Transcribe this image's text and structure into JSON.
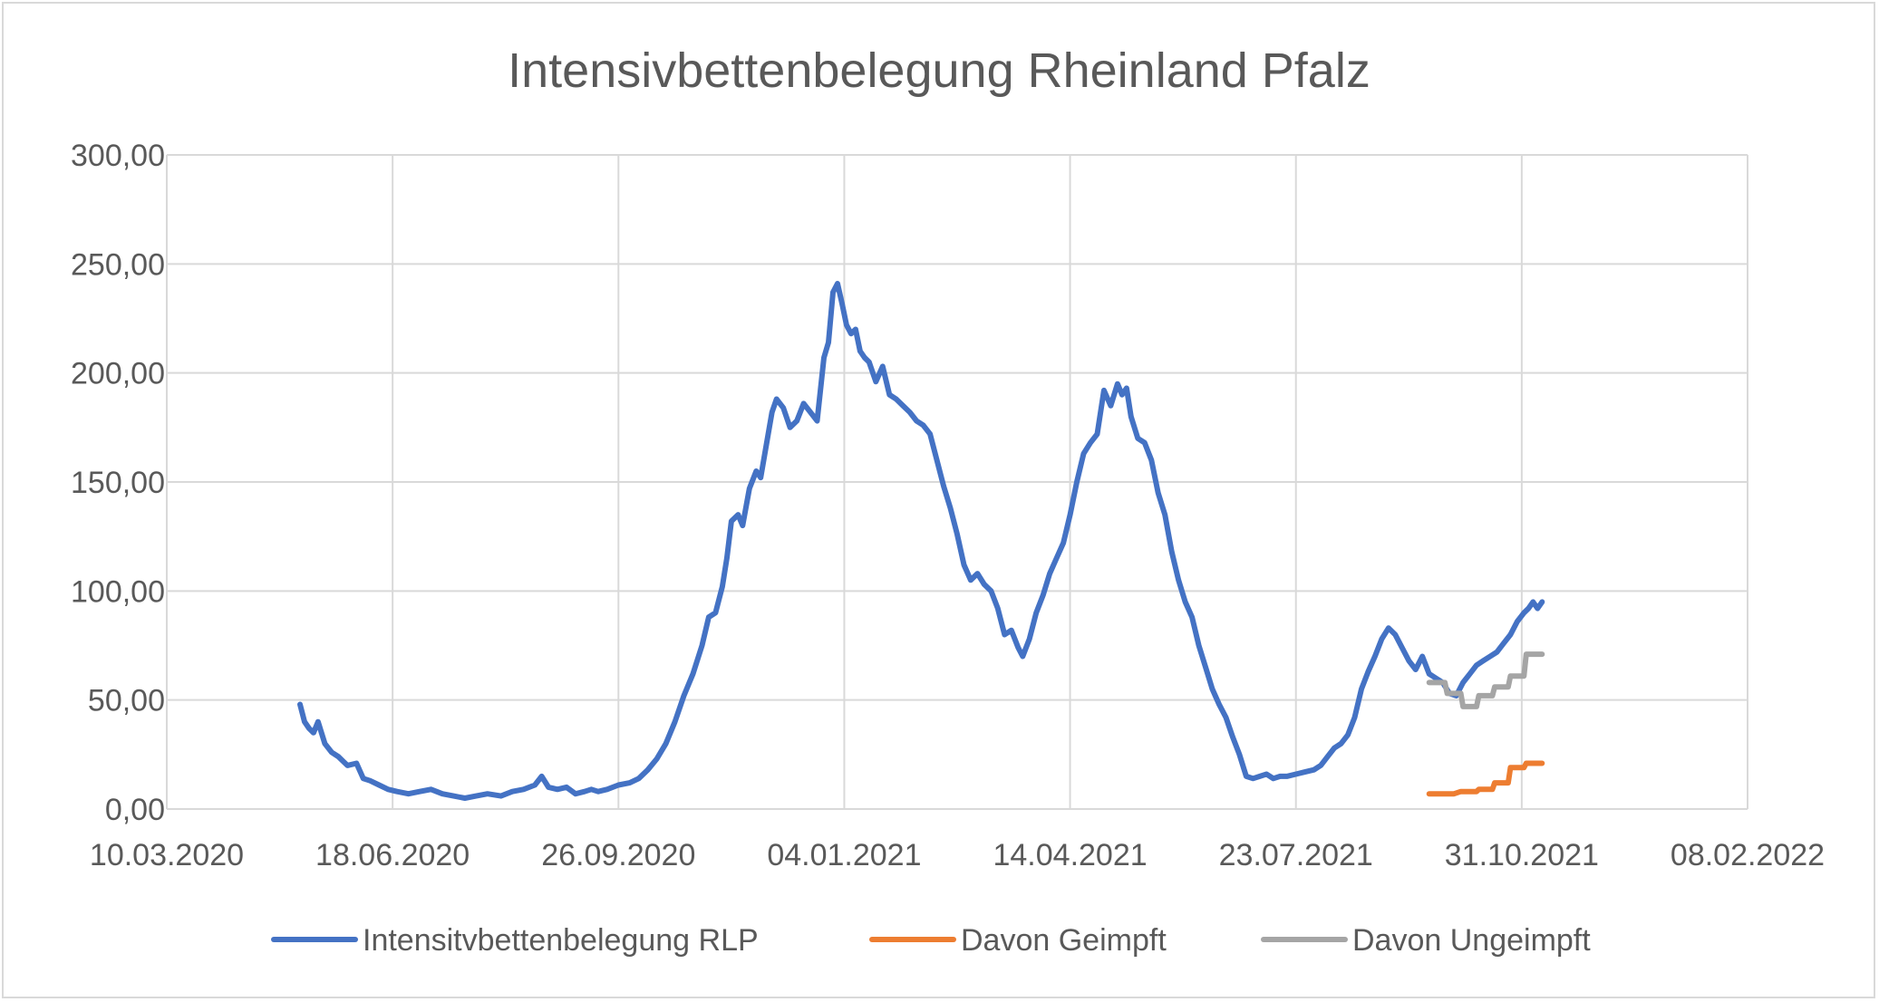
{
  "chart_data": {
    "type": "line",
    "title": "Intensivbettenbelegung Rheinland Pfalz",
    "xlabel": "",
    "ylabel": "",
    "x_axis": {
      "type": "date",
      "range": [
        "2020-03-10",
        "2022-02-08"
      ],
      "ticks": [
        "2020-03-10",
        "2020-06-18",
        "2020-09-26",
        "2021-01-04",
        "2021-04-14",
        "2021-07-23",
        "2021-10-31",
        "2022-02-08"
      ],
      "tick_labels": [
        "10.03.2020",
        "18.06.2020",
        "26.09.2020",
        "04.01.2021",
        "14.04.2021",
        "23.07.2021",
        "31.10.2021",
        "08.02.2022"
      ]
    },
    "y_axis": {
      "range": [
        0,
        300
      ],
      "ticks": [
        0,
        50,
        100,
        150,
        200,
        250,
        300
      ],
      "tick_labels": [
        "0,00",
        "50,00",
        "100,00",
        "150,00",
        "200,00",
        "250,00",
        "300,00"
      ]
    },
    "grid": true,
    "legend_position": "bottom",
    "series": [
      {
        "name": "Intensitvbettenbelegung RLP",
        "color": "#4472c4",
        "points": [
          [
            "2020-05-08",
            48
          ],
          [
            "2020-05-10",
            40
          ],
          [
            "2020-05-12",
            37
          ],
          [
            "2020-05-14",
            35
          ],
          [
            "2020-05-16",
            40
          ],
          [
            "2020-05-19",
            30
          ],
          [
            "2020-05-22",
            26
          ],
          [
            "2020-05-25",
            24
          ],
          [
            "2020-05-29",
            20
          ],
          [
            "2020-06-02",
            21
          ],
          [
            "2020-06-05",
            14
          ],
          [
            "2020-06-08",
            13
          ],
          [
            "2020-06-12",
            11
          ],
          [
            "2020-06-16",
            9
          ],
          [
            "2020-06-20",
            8
          ],
          [
            "2020-06-25",
            7
          ],
          [
            "2020-06-30",
            8
          ],
          [
            "2020-07-05",
            9
          ],
          [
            "2020-07-10",
            7
          ],
          [
            "2020-07-15",
            6
          ],
          [
            "2020-07-20",
            5
          ],
          [
            "2020-07-25",
            6
          ],
          [
            "2020-07-30",
            7
          ],
          [
            "2020-08-05",
            6
          ],
          [
            "2020-08-10",
            8
          ],
          [
            "2020-08-15",
            9
          ],
          [
            "2020-08-20",
            11
          ],
          [
            "2020-08-23",
            15
          ],
          [
            "2020-08-26",
            10
          ],
          [
            "2020-08-30",
            9
          ],
          [
            "2020-09-03",
            10
          ],
          [
            "2020-09-07",
            7
          ],
          [
            "2020-09-11",
            8
          ],
          [
            "2020-09-14",
            9
          ],
          [
            "2020-09-17",
            8
          ],
          [
            "2020-09-21",
            9
          ],
          [
            "2020-09-26",
            11
          ],
          [
            "2020-10-01",
            12
          ],
          [
            "2020-10-05",
            14
          ],
          [
            "2020-10-09",
            18
          ],
          [
            "2020-10-13",
            23
          ],
          [
            "2020-10-17",
            30
          ],
          [
            "2020-10-21",
            40
          ],
          [
            "2020-10-25",
            52
          ],
          [
            "2020-10-29",
            62
          ],
          [
            "2020-11-02",
            75
          ],
          [
            "2020-11-05",
            88
          ],
          [
            "2020-11-08",
            90
          ],
          [
            "2020-11-11",
            102
          ],
          [
            "2020-11-13",
            115
          ],
          [
            "2020-11-15",
            132
          ],
          [
            "2020-11-18",
            135
          ],
          [
            "2020-11-20",
            130
          ],
          [
            "2020-11-23",
            147
          ],
          [
            "2020-11-26",
            155
          ],
          [
            "2020-11-28",
            152
          ],
          [
            "2020-12-01",
            170
          ],
          [
            "2020-12-03",
            182
          ],
          [
            "2020-12-05",
            188
          ],
          [
            "2020-12-08",
            184
          ],
          [
            "2020-12-11",
            175
          ],
          [
            "2020-12-14",
            178
          ],
          [
            "2020-12-17",
            186
          ],
          [
            "2020-12-20",
            182
          ],
          [
            "2020-12-23",
            178
          ],
          [
            "2020-12-26",
            207
          ],
          [
            "2020-12-28",
            214
          ],
          [
            "2020-12-30",
            237
          ],
          [
            "2021-01-01",
            241
          ],
          [
            "2021-01-03",
            232
          ],
          [
            "2021-01-05",
            222
          ],
          [
            "2021-01-07",
            218
          ],
          [
            "2021-01-09",
            220
          ],
          [
            "2021-01-11",
            210
          ],
          [
            "2021-01-13",
            207
          ],
          [
            "2021-01-15",
            205
          ],
          [
            "2021-01-18",
            196
          ],
          [
            "2021-01-21",
            203
          ],
          [
            "2021-01-24",
            190
          ],
          [
            "2021-01-27",
            188
          ],
          [
            "2021-01-30",
            185
          ],
          [
            "2021-02-02",
            182
          ],
          [
            "2021-02-05",
            178
          ],
          [
            "2021-02-08",
            176
          ],
          [
            "2021-02-11",
            172
          ],
          [
            "2021-02-14",
            160
          ],
          [
            "2021-02-17",
            148
          ],
          [
            "2021-02-20",
            138
          ],
          [
            "2021-02-23",
            126
          ],
          [
            "2021-02-26",
            112
          ],
          [
            "2021-03-01",
            105
          ],
          [
            "2021-03-04",
            108
          ],
          [
            "2021-03-07",
            103
          ],
          [
            "2021-03-10",
            100
          ],
          [
            "2021-03-13",
            92
          ],
          [
            "2021-03-16",
            80
          ],
          [
            "2021-03-19",
            82
          ],
          [
            "2021-03-22",
            74
          ],
          [
            "2021-03-24",
            70
          ],
          [
            "2021-03-27",
            78
          ],
          [
            "2021-03-30",
            90
          ],
          [
            "2021-04-02",
            98
          ],
          [
            "2021-04-05",
            108
          ],
          [
            "2021-04-08",
            115
          ],
          [
            "2021-04-11",
            122
          ],
          [
            "2021-04-14",
            135
          ],
          [
            "2021-04-17",
            150
          ],
          [
            "2021-04-20",
            163
          ],
          [
            "2021-04-23",
            168
          ],
          [
            "2021-04-26",
            172
          ],
          [
            "2021-04-29",
            192
          ],
          [
            "2021-05-02",
            185
          ],
          [
            "2021-05-05",
            195
          ],
          [
            "2021-05-07",
            190
          ],
          [
            "2021-05-09",
            193
          ],
          [
            "2021-05-11",
            180
          ],
          [
            "2021-05-14",
            170
          ],
          [
            "2021-05-17",
            168
          ],
          [
            "2021-05-20",
            160
          ],
          [
            "2021-05-23",
            145
          ],
          [
            "2021-05-26",
            135
          ],
          [
            "2021-05-29",
            118
          ],
          [
            "2021-06-01",
            105
          ],
          [
            "2021-06-04",
            95
          ],
          [
            "2021-06-07",
            88
          ],
          [
            "2021-06-10",
            75
          ],
          [
            "2021-06-13",
            65
          ],
          [
            "2021-06-16",
            55
          ],
          [
            "2021-06-19",
            48
          ],
          [
            "2021-06-22",
            42
          ],
          [
            "2021-06-25",
            33
          ],
          [
            "2021-06-28",
            25
          ],
          [
            "2021-07-01",
            15
          ],
          [
            "2021-07-04",
            14
          ],
          [
            "2021-07-07",
            15
          ],
          [
            "2021-07-10",
            16
          ],
          [
            "2021-07-13",
            14
          ],
          [
            "2021-07-16",
            15
          ],
          [
            "2021-07-19",
            15
          ],
          [
            "2021-07-23",
            16
          ],
          [
            "2021-07-27",
            17
          ],
          [
            "2021-07-31",
            18
          ],
          [
            "2021-08-03",
            20
          ],
          [
            "2021-08-06",
            24
          ],
          [
            "2021-08-09",
            28
          ],
          [
            "2021-08-12",
            30
          ],
          [
            "2021-08-15",
            34
          ],
          [
            "2021-08-18",
            42
          ],
          [
            "2021-08-21",
            55
          ],
          [
            "2021-08-24",
            63
          ],
          [
            "2021-08-27",
            70
          ],
          [
            "2021-08-30",
            78
          ],
          [
            "2021-09-02",
            83
          ],
          [
            "2021-09-05",
            80
          ],
          [
            "2021-09-08",
            74
          ],
          [
            "2021-09-11",
            68
          ],
          [
            "2021-09-14",
            64
          ],
          [
            "2021-09-17",
            70
          ],
          [
            "2021-09-20",
            62
          ],
          [
            "2021-09-23",
            60
          ],
          [
            "2021-09-26",
            58
          ],
          [
            "2021-09-29",
            53
          ],
          [
            "2021-10-02",
            52
          ],
          [
            "2021-10-05",
            58
          ],
          [
            "2021-10-08",
            62
          ],
          [
            "2021-10-11",
            66
          ],
          [
            "2021-10-14",
            68
          ],
          [
            "2021-10-17",
            70
          ],
          [
            "2021-10-20",
            72
          ],
          [
            "2021-10-23",
            76
          ],
          [
            "2021-10-26",
            80
          ],
          [
            "2021-10-29",
            86
          ],
          [
            "2021-11-01",
            90
          ],
          [
            "2021-11-03",
            92
          ],
          [
            "2021-11-05",
            95
          ],
          [
            "2021-11-07",
            92
          ],
          [
            "2021-11-09",
            95
          ]
        ]
      },
      {
        "name": "Davon Geimpft",
        "color": "#ed7d31",
        "points": [
          [
            "2021-09-20",
            7
          ],
          [
            "2021-09-27",
            7
          ],
          [
            "2021-10-01",
            7
          ],
          [
            "2021-10-04",
            8
          ],
          [
            "2021-10-11",
            8
          ],
          [
            "2021-10-12",
            9
          ],
          [
            "2021-10-18",
            9
          ],
          [
            "2021-10-19",
            12
          ],
          [
            "2021-10-25",
            12
          ],
          [
            "2021-10-26",
            19
          ],
          [
            "2021-11-01",
            19
          ],
          [
            "2021-11-02",
            21
          ],
          [
            "2021-11-09",
            21
          ]
        ]
      },
      {
        "name": "Davon Ungeimpft",
        "color": "#a5a5a5",
        "points": [
          [
            "2021-09-20",
            58
          ],
          [
            "2021-09-27",
            58
          ],
          [
            "2021-09-28",
            53
          ],
          [
            "2021-10-04",
            53
          ],
          [
            "2021-10-05",
            47
          ],
          [
            "2021-10-11",
            47
          ],
          [
            "2021-10-12",
            52
          ],
          [
            "2021-10-18",
            52
          ],
          [
            "2021-10-19",
            56
          ],
          [
            "2021-10-25",
            56
          ],
          [
            "2021-10-26",
            61
          ],
          [
            "2021-11-01",
            61
          ],
          [
            "2021-11-02",
            71
          ],
          [
            "2021-11-09",
            71
          ]
        ]
      }
    ]
  }
}
